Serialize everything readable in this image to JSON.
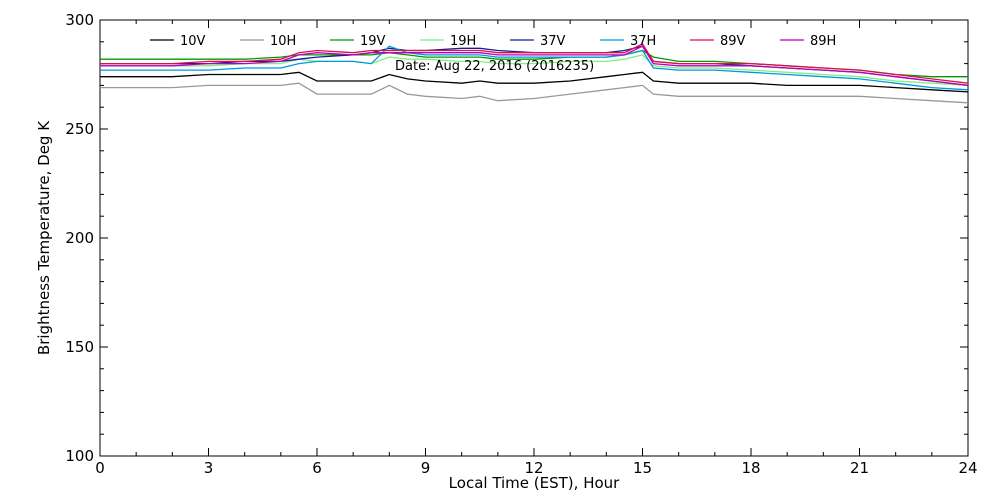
{
  "chart_data": {
    "type": "line",
    "title": "",
    "annotation": "Date: Aug 22, 2016 (2016235)",
    "xlabel": "Local Time (EST), Hour",
    "ylabel": "Brightness Temperature, Deg  K",
    "xlim": [
      0,
      24
    ],
    "ylim": [
      100,
      300
    ],
    "xticks": [
      0,
      3,
      6,
      9,
      12,
      15,
      18,
      21,
      24
    ],
    "yticks": [
      100,
      150,
      200,
      250,
      300
    ],
    "grid": false,
    "legend_position": "top",
    "x": [
      0,
      1,
      2,
      3,
      4,
      5,
      5.5,
      6,
      7,
      7.5,
      8,
      8.5,
      9,
      10,
      10.5,
      11,
      12,
      13,
      14,
      14.5,
      15,
      15.3,
      16,
      17,
      18,
      19,
      20,
      21,
      22,
      23,
      24
    ],
    "series": [
      {
        "name": "10V",
        "color": "#000000",
        "values": [
          274,
          274,
          274,
          275,
          275,
          275,
          276,
          272,
          272,
          272,
          275,
          273,
          272,
          271,
          272,
          271,
          271,
          272,
          274,
          275,
          276,
          272,
          271,
          271,
          271,
          270,
          270,
          270,
          269,
          268,
          267
        ]
      },
      {
        "name": "10H",
        "color": "#999999",
        "values": [
          269,
          269,
          269,
          270,
          270,
          270,
          271,
          266,
          266,
          266,
          270,
          266,
          265,
          264,
          265,
          263,
          264,
          266,
          268,
          269,
          270,
          266,
          265,
          265,
          265,
          265,
          265,
          265,
          264,
          263,
          262
        ]
      },
      {
        "name": "19V",
        "color": "#009900",
        "values": [
          282,
          282,
          282,
          282,
          282,
          283,
          284,
          284,
          284,
          284,
          285,
          284,
          283,
          283,
          283,
          282,
          282,
          283,
          283,
          284,
          286,
          283,
          281,
          281,
          280,
          279,
          278,
          277,
          275,
          274,
          274
        ]
      },
      {
        "name": "19H",
        "color": "#80ee80",
        "values": [
          279,
          279,
          279,
          279,
          280,
          280,
          282,
          281,
          281,
          280,
          283,
          282,
          282,
          281,
          281,
          280,
          280,
          281,
          281,
          282,
          284,
          279,
          278,
          278,
          277,
          276,
          275,
          274,
          272,
          271,
          270
        ]
      },
      {
        "name": "37V",
        "color": "#1a1a9a",
        "values": [
          280,
          280,
          280,
          280,
          281,
          281,
          282,
          283,
          284,
          285,
          287,
          286,
          286,
          287,
          287,
          286,
          285,
          285,
          285,
          286,
          288,
          281,
          280,
          280,
          279,
          278,
          277,
          276,
          274,
          272,
          270
        ]
      },
      {
        "name": "37H",
        "color": "#0099dd",
        "values": [
          277,
          277,
          277,
          277,
          278,
          278,
          280,
          281,
          281,
          280,
          288,
          285,
          284,
          284,
          284,
          283,
          283,
          283,
          283,
          284,
          286,
          278,
          277,
          277,
          276,
          275,
          274,
          273,
          271,
          269,
          268
        ]
      },
      {
        "name": "89V",
        "color": "#dd1144",
        "values": [
          280,
          280,
          280,
          281,
          281,
          282,
          285,
          286,
          285,
          286,
          286,
          286,
          286,
          286,
          286,
          285,
          285,
          285,
          285,
          285,
          289,
          281,
          280,
          280,
          280,
          279,
          278,
          277,
          275,
          273,
          271
        ]
      },
      {
        "name": "89H",
        "color": "#bb00bb",
        "values": [
          279,
          279,
          279,
          280,
          280,
          281,
          284,
          285,
          284,
          285,
          285,
          285,
          285,
          285,
          285,
          284,
          284,
          284,
          284,
          284,
          288,
          280,
          279,
          279,
          279,
          278,
          277,
          276,
          274,
          272,
          270
        ]
      }
    ]
  }
}
